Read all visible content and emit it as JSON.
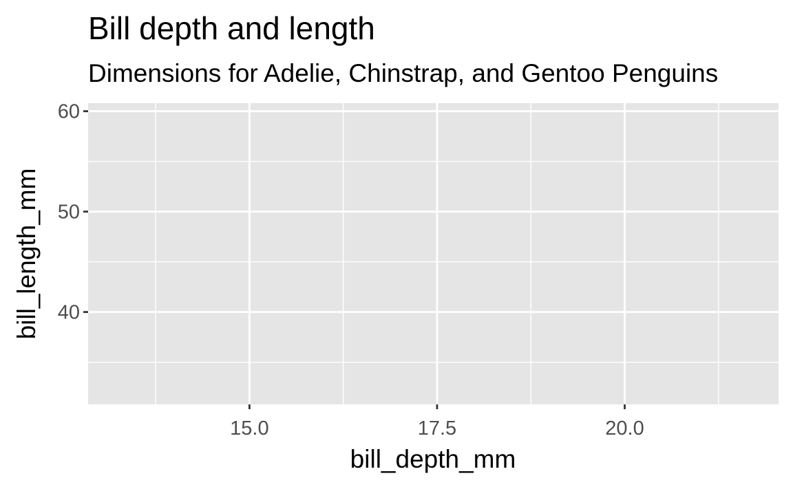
{
  "chart_data": {
    "type": "scatter",
    "title": "Bill depth and length",
    "subtitle": "Dimensions for Adelie, Chinstrap, and Gentoo Penguins",
    "xlabel": "bill_depth_mm",
    "ylabel": "bill_length_mm",
    "xlim": [
      12.85,
      22.05
    ],
    "ylim": [
      30.8,
      60.8
    ],
    "x_ticks": [
      15.0,
      17.5,
      20.0
    ],
    "x_tick_labels": [
      "15.0",
      "17.5",
      "20.0"
    ],
    "x_minor_ticks": [
      13.75,
      16.25,
      18.75,
      21.25
    ],
    "y_ticks": [
      40,
      50,
      60
    ],
    "y_tick_labels": [
      "40",
      "50",
      "60"
    ],
    "y_minor_ticks": [
      35,
      45,
      55
    ],
    "grid": true,
    "series": [],
    "colors": {
      "panel_background": "#e5e5e5",
      "grid_line": "#ffffff",
      "tick_text": "#4d4d4d",
      "tick_mark": "#333333",
      "text": "#000000"
    }
  }
}
